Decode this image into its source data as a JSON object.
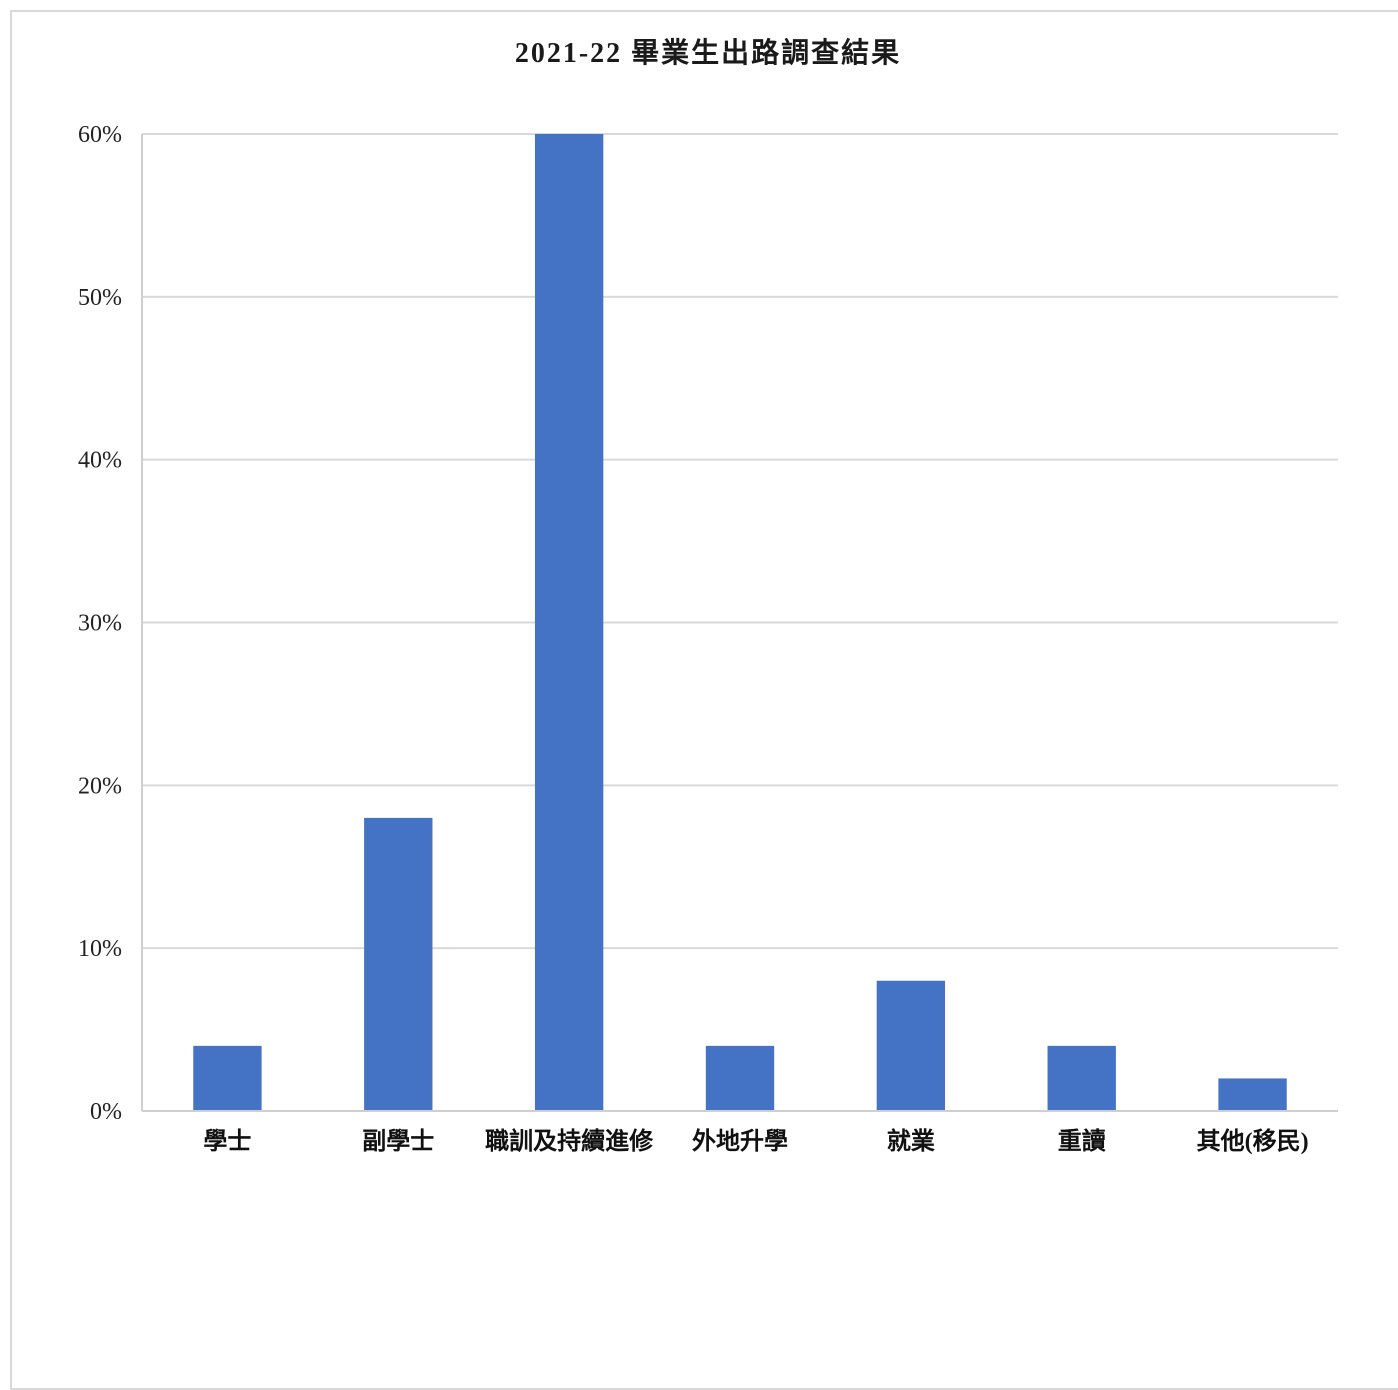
{
  "chart_data": {
    "type": "bar",
    "title": "2021-22 畢業生出路調查結果",
    "xlabel": "",
    "ylabel": "",
    "categories": [
      "學士",
      "副學士",
      "職訓及持續進修",
      "外地升學",
      "就業",
      "重讀",
      "其他(移民)"
    ],
    "values": [
      4,
      18,
      60,
      4,
      8,
      4,
      2
    ],
    "ylim": [
      0,
      60
    ],
    "yticks": [
      0,
      10,
      20,
      30,
      40,
      50,
      60
    ],
    "ytick_labels": [
      "0%",
      "10%",
      "20%",
      "30%",
      "40%",
      "50%",
      "60%"
    ],
    "grid": true,
    "legend": "none",
    "bar_color": "#4472c4"
  }
}
